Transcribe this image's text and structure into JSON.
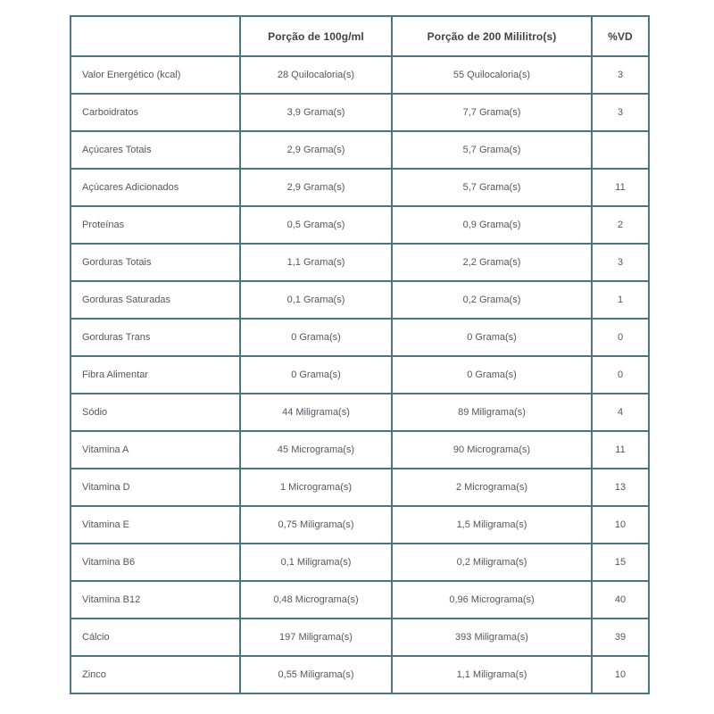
{
  "colors": {
    "border": "#4a7683",
    "header_text": "#3f4146",
    "body_text": "#55575c",
    "background": "#ffffff"
  },
  "table": {
    "headers": [
      "",
      "Porção de 100g/ml",
      "Porção de 200 Mililitro(s)",
      "%VD"
    ],
    "rows": [
      {
        "label": "Valor Energético (kcal)",
        "per_100": "28 Quilocaloria(s)",
        "per_200": "55 Quilocaloria(s)",
        "vd": "3"
      },
      {
        "label": "Carboidratos",
        "per_100": "3,9 Grama(s)",
        "per_200": "7,7 Grama(s)",
        "vd": "3"
      },
      {
        "label": "Açúcares Totais",
        "per_100": "2,9 Grama(s)",
        "per_200": "5,7 Grama(s)",
        "vd": ""
      },
      {
        "label": "Açúcares Adicionados",
        "per_100": "2,9 Grama(s)",
        "per_200": "5,7 Grama(s)",
        "vd": "11"
      },
      {
        "label": "Proteínas",
        "per_100": "0,5 Grama(s)",
        "per_200": "0,9 Grama(s)",
        "vd": "2"
      },
      {
        "label": "Gorduras Totais",
        "per_100": "1,1 Grama(s)",
        "per_200": "2,2 Grama(s)",
        "vd": "3"
      },
      {
        "label": "Gorduras Saturadas",
        "per_100": "0,1 Grama(s)",
        "per_200": "0,2 Grama(s)",
        "vd": "1"
      },
      {
        "label": "Gorduras Trans",
        "per_100": "0 Grama(s)",
        "per_200": "0 Grama(s)",
        "vd": "0"
      },
      {
        "label": "Fibra Alimentar",
        "per_100": "0 Grama(s)",
        "per_200": "0 Grama(s)",
        "vd": "0"
      },
      {
        "label": "Sódio",
        "per_100": "44 Miligrama(s)",
        "per_200": "89 Miligrama(s)",
        "vd": "4"
      },
      {
        "label": "Vitamina A",
        "per_100": "45 Micrograma(s)",
        "per_200": "90 Micrograma(s)",
        "vd": "11"
      },
      {
        "label": "Vitamina D",
        "per_100": "1 Micrograma(s)",
        "per_200": "2 Micrograma(s)",
        "vd": "13"
      },
      {
        "label": "Vitamina E",
        "per_100": "0,75 Miligrama(s)",
        "per_200": "1,5 Miligrama(s)",
        "vd": "10"
      },
      {
        "label": "Vitamina B6",
        "per_100": "0,1 Miligrama(s)",
        "per_200": "0,2 Miligrama(s)",
        "vd": "15"
      },
      {
        "label": "Vitamina B12",
        "per_100": "0,48 Micrograma(s)",
        "per_200": "0,96 Micrograma(s)",
        "vd": "40"
      },
      {
        "label": "Cálcio",
        "per_100": "197 Miligrama(s)",
        "per_200": "393 Miligrama(s)",
        "vd": "39"
      },
      {
        "label": "Zinco",
        "per_100": "0,55 Miligrama(s)",
        "per_200": "1,1 Miligrama(s)",
        "vd": "10"
      }
    ]
  }
}
